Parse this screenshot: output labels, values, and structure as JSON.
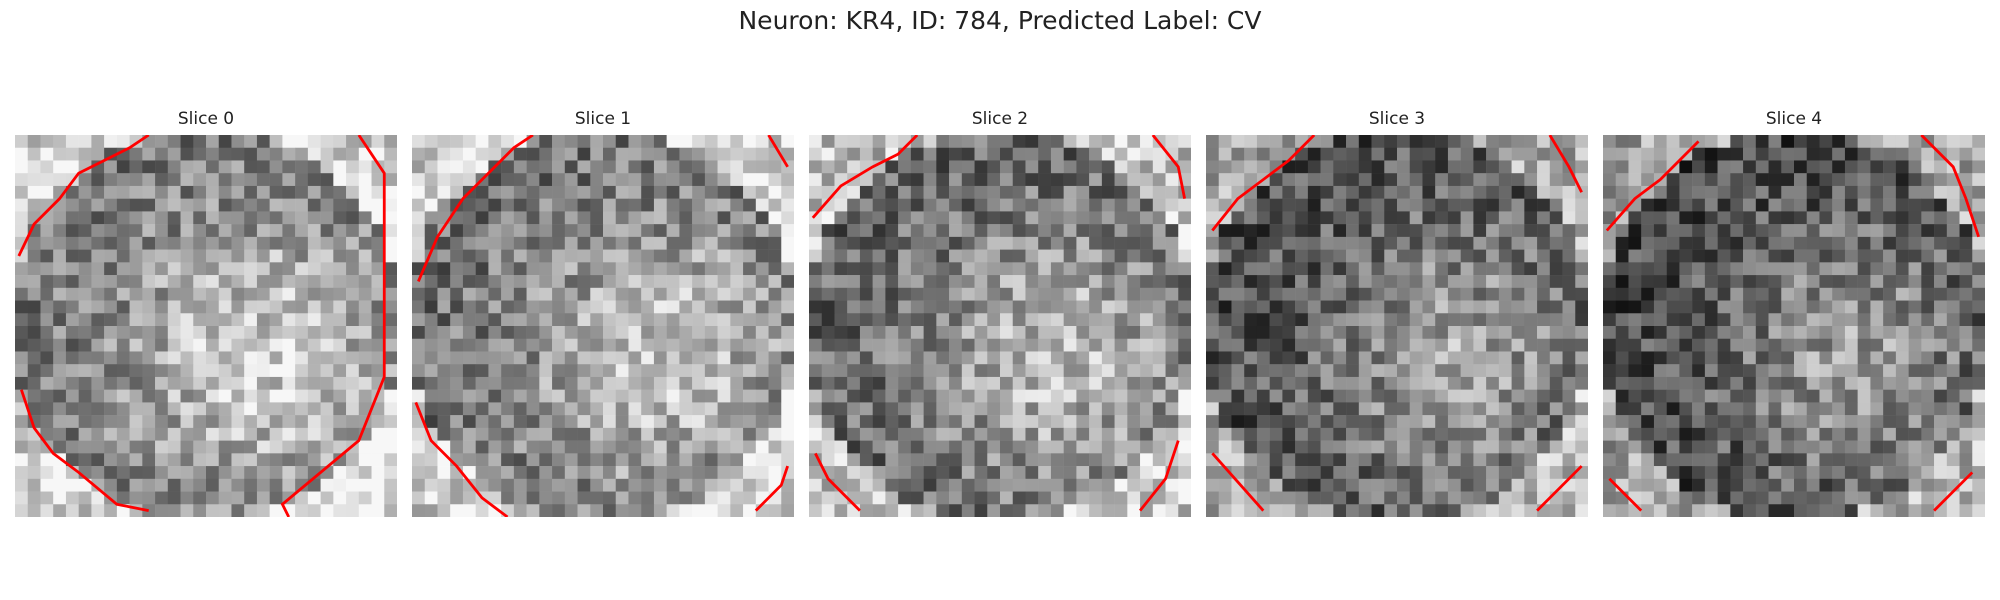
{
  "figure": {
    "title": "Neuron: KR4, ID: 784, Predicted Label: CV"
  },
  "slices": [
    {
      "label": "Slice 0",
      "brightness": 0.62
    },
    {
      "label": "Slice 1",
      "brightness": 0.58
    },
    {
      "label": "Slice 2",
      "brightness": 0.52
    },
    {
      "label": "Slice 3",
      "brightness": 0.4
    },
    {
      "label": "Slice 4",
      "brightness": 0.36
    }
  ],
  "colors": {
    "contour": "#ff0000",
    "background": "#ffffff"
  }
}
